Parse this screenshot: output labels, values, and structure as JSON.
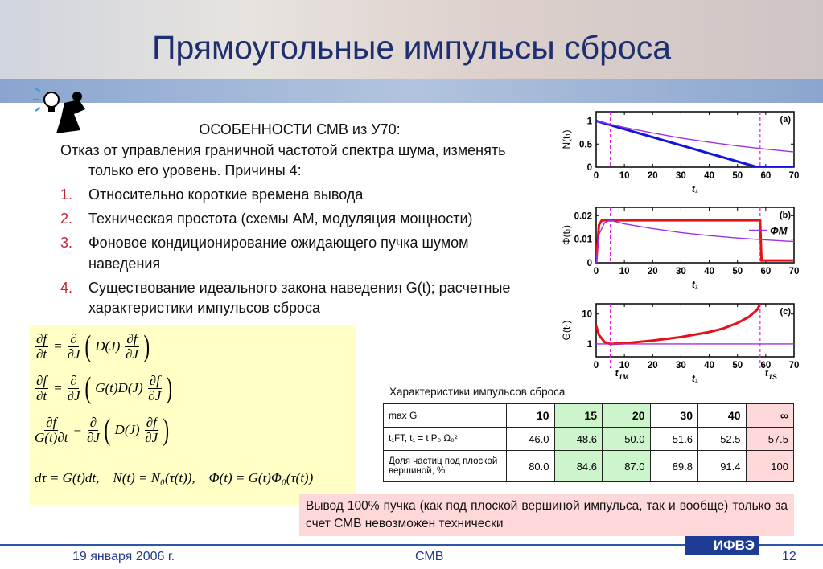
{
  "header": {
    "title": "Прямоугольные импульсы сброса"
  },
  "body": {
    "heading": "ОСОБЕННОСТИ СМВ из У70:",
    "intro": "Отказ от управления граничной частотой спектра шума, изменять только его уровень. Причины 4:",
    "items": [
      {
        "number": "1.",
        "text": "Относительно короткие времена вывода"
      },
      {
        "number": "2.",
        "text": "Техническая простота (схемы АМ, модуляция мощности)"
      },
      {
        "number": "3.",
        "text": "Фоновое кондиционирование ожидающего пучка шумом наведения"
      },
      {
        "number": "4.",
        "text": "Существование идеального закона наведения G(t); расчетные характеристики импульсов сброса"
      }
    ]
  },
  "formulas": [
    [
      [
        "∂f",
        "∂t"
      ],
      "=",
      [
        "∂",
        "∂J"
      ],
      "(",
      "D(J)",
      [
        "∂f",
        "∂J"
      ],
      ")"
    ],
    [
      [
        "∂f",
        "∂t"
      ],
      "=",
      [
        "∂",
        "∂J"
      ],
      "(",
      "G(t)D(J)",
      [
        "∂f",
        "∂J"
      ],
      ")"
    ],
    [
      [
        "∂f",
        "G(t)∂t"
      ],
      "=",
      [
        "∂",
        "∂J"
      ],
      "(",
      "D(J)",
      [
        "∂f",
        "∂J"
      ],
      ")"
    ],
    [
      "dτ = G(t)dt,    N(t) = N₀(τ(t)),    Φ(t) = G(t)Φ₀(τ(t))"
    ]
  ],
  "table": {
    "caption": "Характеристики импульсов сброса",
    "header": [
      "max G",
      "10",
      "15",
      "20",
      "30",
      "40",
      "∞"
    ],
    "rows": [
      [
        "t₁FT,     t₁ = t P₀ Ω₀²",
        "46.0",
        "48.6",
        "50.0",
        "51.6",
        "52.5",
        "57.5"
      ],
      [
        "Доля частиц под плоской вершиной, %",
        "80.0",
        "84.6",
        "87.0",
        "89.8",
        "91.4",
        "100"
      ]
    ]
  },
  "note": "Вывод 100% пучка (как под плоской вершиной импульса, так и вообще) только за счет СМВ невозможен технически",
  "footer": {
    "date": "19 января 2006 г.",
    "center": "СМВ",
    "page": "12",
    "logo": "ИФВЭ"
  },
  "chart_data": [
    {
      "type": "line",
      "panel": "(a)",
      "x_label": "t₁",
      "y_label": "N(t₁)",
      "xlim": [
        0,
        70
      ],
      "xticks": [
        0,
        10,
        20,
        30,
        40,
        50,
        60,
        70
      ],
      "ylim": [
        0,
        1.2
      ],
      "yticks": [
        0,
        0.5,
        1
      ],
      "vlines": [
        5,
        58
      ],
      "vline_color": "#e020e0",
      "series": [
        {
          "color": "#1414d8",
          "x": [
            0,
            57,
            70
          ],
          "values": [
            1,
            0,
            0
          ]
        },
        {
          "color": "#a030e8",
          "x": [
            0,
            10,
            20,
            30,
            40,
            50,
            60,
            70
          ],
          "values": [
            1,
            0.86,
            0.74,
            0.63,
            0.54,
            0.46,
            0.39,
            0.33
          ]
        }
      ]
    },
    {
      "type": "line",
      "panel": "(b)",
      "x_label": "t₁",
      "y_label": "Φ(t₁)",
      "xlim": [
        0,
        70
      ],
      "xticks": [
        0,
        10,
        20,
        30,
        40,
        50,
        60,
        70
      ],
      "ylim": [
        0,
        0.0235
      ],
      "yticks": [
        0,
        0.01,
        0.02
      ],
      "vlines": [
        5,
        58
      ],
      "vline_color": "#e020e0",
      "series": [
        {
          "color": "#e81018",
          "x": [
            0,
            1,
            2,
            58,
            58.5,
            70
          ],
          "values": [
            0,
            0.016,
            0.018,
            0.018,
            0.001,
            0.001
          ]
        },
        {
          "name": "ΦM",
          "color": "#a030e8",
          "x": [
            0,
            1,
            3,
            5,
            10,
            20,
            30,
            40,
            50,
            60,
            70
          ],
          "values": [
            0,
            0.012,
            0.017,
            0.018,
            0.0165,
            0.0145,
            0.0128,
            0.0115,
            0.0105,
            0.0097,
            0.009
          ]
        }
      ]
    },
    {
      "type": "line",
      "panel": "(c)",
      "x_label": "t₁",
      "y_label": "G(t₁)",
      "log": true,
      "xlim": [
        0,
        70
      ],
      "xticks": [
        0,
        10,
        20,
        30,
        40,
        50,
        60,
        70
      ],
      "ylim": [
        0.37,
        22
      ],
      "yticks": [
        1,
        10
      ],
      "vlines": [
        5,
        58
      ],
      "vline_color": "#e020e0",
      "annotations": [
        {
          "text": "t",
          "sub": "1M"
        },
        {
          "text": "t",
          "sub": "1S"
        }
      ],
      "series": [
        {
          "color": "#e81018",
          "x": [
            0,
            1,
            3,
            5,
            10,
            20,
            30,
            40,
            45,
            50,
            54,
            57,
            58
          ],
          "values": [
            4,
            2,
            1.15,
            1,
            1.05,
            1.3,
            1.7,
            2.5,
            3.3,
            5,
            8,
            14,
            22
          ]
        },
        {
          "color": "#a030e8",
          "x": [
            0,
            70
          ],
          "values": [
            1,
            1
          ]
        }
      ]
    }
  ]
}
